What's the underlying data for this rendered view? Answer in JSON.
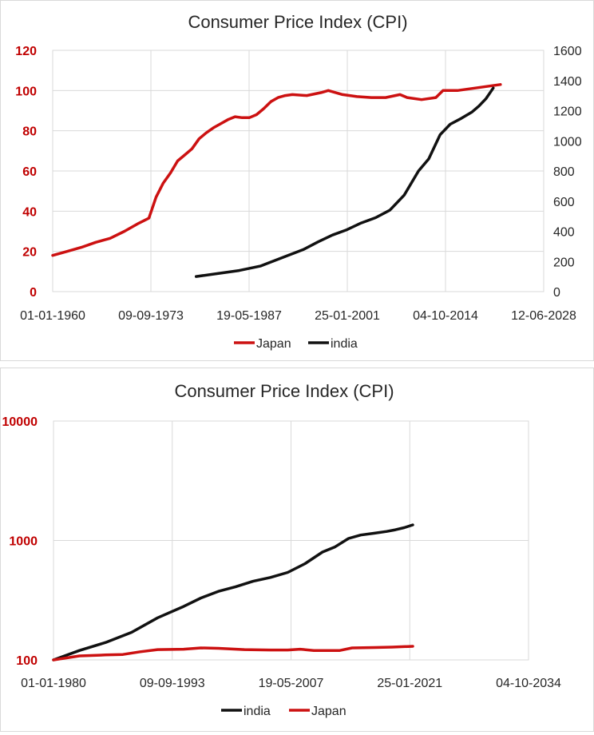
{
  "colors": {
    "japan": "#cc1111",
    "india": "#111111",
    "grid": "#d9d9d9",
    "red_axis": "#c00000"
  },
  "chart_data": [
    {
      "type": "line",
      "title": "Consumer Price Index (CPI)",
      "x_axis": {
        "type": "date",
        "min": "1960-01-01",
        "max": "2028-06-12",
        "tick_labels": [
          "01-01-1960",
          "09-09-1973",
          "19-05-1987",
          "25-01-2001",
          "04-10-2014",
          "12-06-2028"
        ]
      },
      "y_axis_left": {
        "min": 0,
        "max": 120,
        "ticks": [
          "0",
          "20",
          "40",
          "60",
          "80",
          "100",
          "120"
        ],
        "color": "#c00000"
      },
      "y_axis_right": {
        "min": 0,
        "max": 1600,
        "ticks": [
          "0",
          "200",
          "400",
          "600",
          "800",
          "1000",
          "1200",
          "1400",
          "1600"
        ]
      },
      "grid": true,
      "legend_position": "bottom",
      "series": [
        {
          "name": "Japan",
          "axis": "left",
          "color": "#cc1111",
          "points": [
            [
              "1960-01-01",
              18
            ],
            [
              "1962-01-01",
              20
            ],
            [
              "1964-01-01",
              22
            ],
            [
              "1966-01-01",
              24.5
            ],
            [
              "1968-01-01",
              26.5
            ],
            [
              "1970-01-01",
              30
            ],
            [
              "1972-01-01",
              34
            ],
            [
              "1973-06-01",
              36.5
            ],
            [
              "1974-06-01",
              47
            ],
            [
              "1975-06-01",
              54
            ],
            [
              "1976-06-01",
              59
            ],
            [
              "1977-06-01",
              65
            ],
            [
              "1978-06-01",
              68
            ],
            [
              "1979-06-01",
              71
            ],
            [
              "1980-06-01",
              76
            ],
            [
              "1981-06-01",
              79
            ],
            [
              "1982-06-01",
              81.5
            ],
            [
              "1983-06-01",
              83.5
            ],
            [
              "1984-06-01",
              85.5
            ],
            [
              "1985-06-01",
              87
            ],
            [
              "1986-06-01",
              86.5
            ],
            [
              "1987-06-01",
              86.5
            ],
            [
              "1988-06-01",
              88
            ],
            [
              "1989-06-01",
              91
            ],
            [
              "1990-06-01",
              94.5
            ],
            [
              "1991-06-01",
              96.5
            ],
            [
              "1992-06-01",
              97.5
            ],
            [
              "1993-06-01",
              98
            ],
            [
              "1995-06-01",
              97.5
            ],
            [
              "1997-06-01",
              99
            ],
            [
              "1998-06-01",
              100
            ],
            [
              "2000-06-01",
              98
            ],
            [
              "2002-06-01",
              97
            ],
            [
              "2004-06-01",
              96.5
            ],
            [
              "2006-06-01",
              96.5
            ],
            [
              "2008-06-01",
              98
            ],
            [
              "2009-06-01",
              96.5
            ],
            [
              "2011-06-01",
              95.5
            ],
            [
              "2013-06-01",
              96.5
            ],
            [
              "2014-06-01",
              100
            ],
            [
              "2016-06-01",
              100
            ],
            [
              "2018-06-01",
              101
            ],
            [
              "2020-06-01",
              102
            ],
            [
              "2022-06-01",
              103
            ]
          ]
        },
        {
          "name": "india",
          "axis": "right",
          "color": "#111111",
          "points": [
            [
              "1980-01-01",
              100
            ],
            [
              "1983-01-01",
              120
            ],
            [
              "1986-01-01",
              140
            ],
            [
              "1989-01-01",
              170
            ],
            [
              "1992-01-01",
              225
            ],
            [
              "1995-01-01",
              280
            ],
            [
              "1997-01-01",
              330
            ],
            [
              "1999-01-01",
              375
            ],
            [
              "2001-01-01",
              410
            ],
            [
              "2003-01-01",
              455
            ],
            [
              "2005-01-01",
              490
            ],
            [
              "2007-01-01",
              540
            ],
            [
              "2009-01-01",
              640
            ],
            [
              "2011-01-01",
              800
            ],
            [
              "2012-06-01",
              880
            ],
            [
              "2014-01-01",
              1040
            ],
            [
              "2015-06-01",
              1110
            ],
            [
              "2017-01-01",
              1150
            ],
            [
              "2018-06-01",
              1190
            ],
            [
              "2019-06-01",
              1230
            ],
            [
              "2020-06-01",
              1280
            ],
            [
              "2021-06-01",
              1350
            ]
          ]
        }
      ],
      "legend": [
        {
          "label": "Japan",
          "color": "#cc1111"
        },
        {
          "label": "india",
          "color": "#111111"
        }
      ]
    },
    {
      "type": "line",
      "title": "Consumer Price Index (CPI)",
      "x_axis": {
        "type": "date",
        "min": "1980-01-01",
        "max": "2034-10-04",
        "tick_labels": [
          "01-01-1980",
          "09-09-1993",
          "19-05-2007",
          "25-01-2021",
          "04-10-2034"
        ]
      },
      "y_axis": {
        "type": "log",
        "min": 100,
        "max": 10000,
        "ticks": [
          "100",
          "1000",
          "10000"
        ],
        "color": "#c00000"
      },
      "grid": true,
      "legend_position": "bottom",
      "series": [
        {
          "name": "india",
          "color": "#111111",
          "points": [
            [
              "1980-01-01",
              100
            ],
            [
              "1983-01-01",
              120
            ],
            [
              "1986-01-01",
              140
            ],
            [
              "1989-01-01",
              170
            ],
            [
              "1992-01-01",
              225
            ],
            [
              "1995-01-01",
              280
            ],
            [
              "1997-01-01",
              330
            ],
            [
              "1999-01-01",
              375
            ],
            [
              "2001-01-01",
              410
            ],
            [
              "2003-01-01",
              455
            ],
            [
              "2005-01-01",
              490
            ],
            [
              "2007-01-01",
              540
            ],
            [
              "2009-01-01",
              640
            ],
            [
              "2011-01-01",
              800
            ],
            [
              "2012-06-01",
              880
            ],
            [
              "2014-01-01",
              1040
            ],
            [
              "2015-06-01",
              1110
            ],
            [
              "2017-01-01",
              1150
            ],
            [
              "2018-06-01",
              1190
            ],
            [
              "2019-06-01",
              1230
            ],
            [
              "2020-06-01",
              1280
            ],
            [
              "2021-06-01",
              1350
            ]
          ]
        },
        {
          "name": "Japan",
          "color": "#cc1111",
          "points": [
            [
              "1980-01-01",
              100
            ],
            [
              "1983-01-01",
              108
            ],
            [
              "1986-01-01",
              110
            ],
            [
              "1988-01-01",
              111
            ],
            [
              "1990-01-01",
              117
            ],
            [
              "1992-01-01",
              122
            ],
            [
              "1995-01-01",
              123
            ],
            [
              "1997-01-01",
              126
            ],
            [
              "1999-01-01",
              125
            ],
            [
              "2002-01-01",
              122
            ],
            [
              "2005-01-01",
              121
            ],
            [
              "2007-01-01",
              121
            ],
            [
              "2008-06-01",
              123
            ],
            [
              "2010-01-01",
              120
            ],
            [
              "2013-01-01",
              120
            ],
            [
              "2014-06-01",
              126
            ],
            [
              "2017-01-01",
              127
            ],
            [
              "2019-01-01",
              128
            ],
            [
              "2021-06-01",
              130
            ]
          ]
        }
      ],
      "legend": [
        {
          "label": "india",
          "color": "#111111"
        },
        {
          "label": "Japan",
          "color": "#cc1111"
        }
      ]
    }
  ]
}
